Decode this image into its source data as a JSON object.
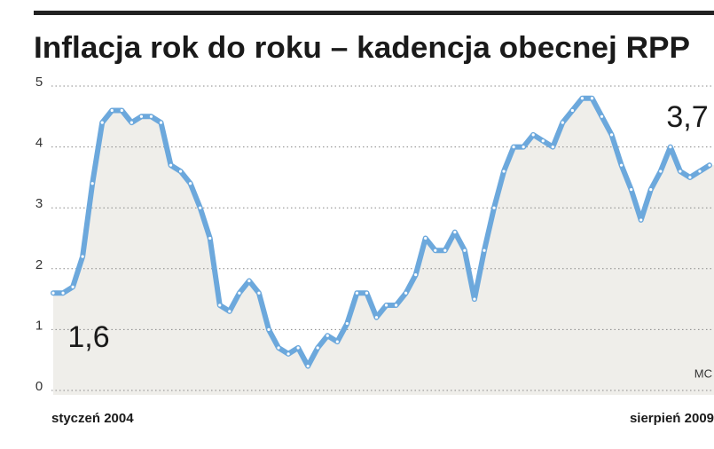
{
  "chart_data": {
    "type": "line",
    "title": "Inflacja rok do roku – kadencja obecnej RPP",
    "credit": "MC",
    "categories": [
      "styczeń 2004",
      null,
      null,
      null,
      null,
      null,
      null,
      null,
      null,
      null,
      null,
      null,
      null,
      null,
      null,
      null,
      null,
      null,
      null,
      null,
      null,
      null,
      null,
      null,
      null,
      null,
      null,
      null,
      null,
      null,
      null,
      null,
      null,
      null,
      null,
      null,
      null,
      null,
      null,
      null,
      null,
      null,
      null,
      null,
      null,
      null,
      null,
      null,
      null,
      null,
      null,
      null,
      null,
      null,
      null,
      null,
      null,
      null,
      null,
      null,
      null,
      null,
      null,
      null,
      null,
      null,
      null,
      "sierpień 2009"
    ],
    "values": [
      1.6,
      1.6,
      1.7,
      2.2,
      3.4,
      4.4,
      4.6,
      4.6,
      4.4,
      4.5,
      4.5,
      4.4,
      3.7,
      3.6,
      3.4,
      3.0,
      2.5,
      1.4,
      1.3,
      1.6,
      1.8,
      1.6,
      1.0,
      0.7,
      0.6,
      0.7,
      0.4,
      0.7,
      0.9,
      0.8,
      1.1,
      1.6,
      1.6,
      1.2,
      1.4,
      1.4,
      1.6,
      1.9,
      2.5,
      2.3,
      2.3,
      2.6,
      2.3,
      1.5,
      2.3,
      3.0,
      3.6,
      4.0,
      4.0,
      4.2,
      4.1,
      4.0,
      4.4,
      4.6,
      4.8,
      4.8,
      4.5,
      4.2,
      3.7,
      3.3,
      2.8,
      3.3,
      3.6,
      4.0,
      3.6,
      3.5,
      3.6,
      3.7
    ],
    "value_labels": [
      "1,6",
      null,
      null,
      null,
      null,
      null,
      null,
      null,
      null,
      null,
      null,
      null,
      null,
      null,
      null,
      null,
      null,
      null,
      null,
      null,
      null,
      null,
      null,
      null,
      null,
      null,
      null,
      null,
      null,
      null,
      null,
      null,
      null,
      null,
      null,
      null,
      null,
      null,
      null,
      null,
      null,
      null,
      null,
      null,
      null,
      null,
      null,
      null,
      null,
      null,
      null,
      null,
      null,
      null,
      null,
      null,
      null,
      null,
      null,
      null,
      null,
      null,
      null,
      null,
      null,
      null,
      null,
      "3,7"
    ],
    "color": "#6ca8dc",
    "ylim": [
      0,
      5
    ],
    "yticks": [
      0,
      1,
      2,
      3,
      4,
      5
    ],
    "grid": true
  }
}
